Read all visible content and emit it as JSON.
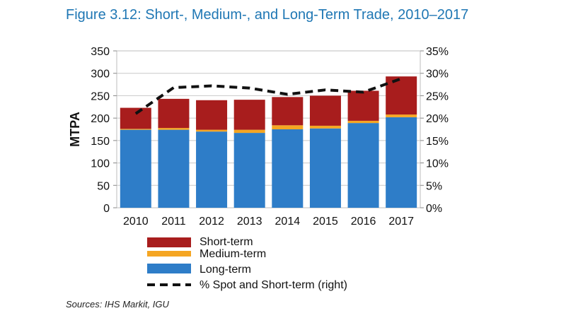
{
  "chart_data": {
    "type": "bar",
    "title": "Figure 3.12: Short-, Medium-, and Long-Term Trade, 2010–2017",
    "categories": [
      "2010",
      "2011",
      "2012",
      "2013",
      "2014",
      "2015",
      "2016",
      "2017"
    ],
    "series": [
      {
        "name": "Long-term",
        "type": "bar",
        "axis": "left",
        "color": "#2e7dc8",
        "values": [
          174,
          174,
          170,
          167,
          175,
          177,
          189,
          202
        ]
      },
      {
        "name": "Medium-term",
        "type": "bar",
        "axis": "left",
        "color": "#f5a623",
        "values": [
          2,
          4,
          4,
          7,
          9,
          6,
          5,
          6
        ]
      },
      {
        "name": "Short-term",
        "type": "bar",
        "axis": "left",
        "color": "#a81d1d",
        "values": [
          47,
          65,
          66,
          67,
          63,
          67,
          67,
          85
        ]
      },
      {
        "name": "% Spot and Short-term (right)",
        "type": "line",
        "axis": "right",
        "color": "#111111",
        "values": [
          21,
          26.8,
          27.2,
          26.7,
          25.3,
          26.3,
          25.8,
          28.8
        ]
      }
    ],
    "ylabel": "MTPA",
    "ylim": [
      0,
      350
    ],
    "yticks": [
      "0",
      "50",
      "100",
      "150",
      "200",
      "250",
      "300",
      "350"
    ],
    "y2lim": [
      0,
      35
    ],
    "y2ticks": [
      "0%",
      "5%",
      "10%",
      "15%",
      "20%",
      "25%",
      "30%",
      "35%"
    ],
    "grid": true,
    "legend_position": "bottom",
    "legend": [
      "Short-term",
      "Medium-term",
      "Long-term",
      "% Spot and Short-term (right)"
    ],
    "source": "Sources: IHS Markit, IGU"
  }
}
